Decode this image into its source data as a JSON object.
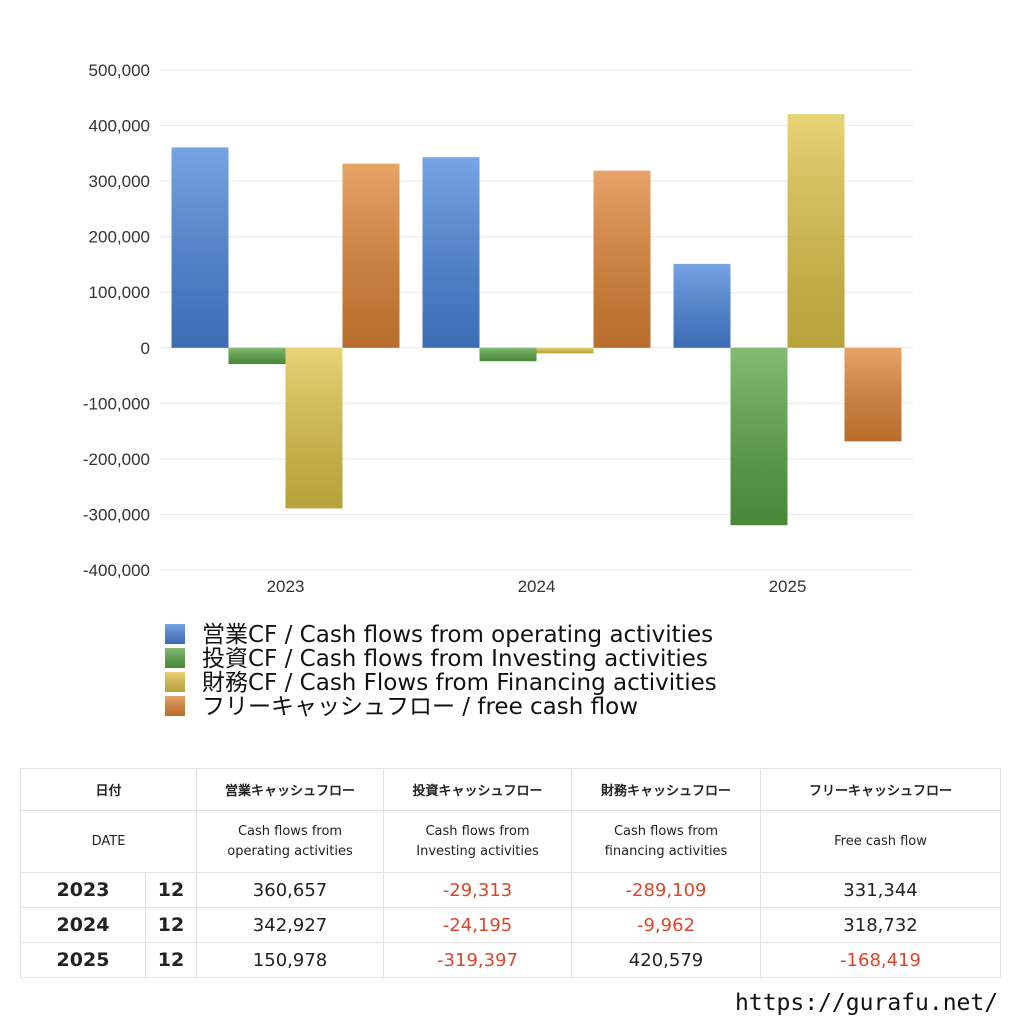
{
  "chart_data": {
    "type": "bar",
    "categories": [
      "2023",
      "2024",
      "2025"
    ],
    "series": [
      {
        "name": "営業CF / Cash flows from operating activities",
        "color": "#4a86dc",
        "values": [
          360657,
          342927,
          150978
        ]
      },
      {
        "name": "投資CF / Cash flows from Investing activities",
        "color": "#5aa545",
        "values": [
          -29313,
          -24195,
          -319397
        ]
      },
      {
        "name": "財務CF / Cash Flows from Financing activities",
        "color": "#e0c548",
        "values": [
          -289109,
          -9962,
          420579
        ]
      },
      {
        "name": "フリーキャッシュフロー / free cash flow",
        "color": "#e08535",
        "values": [
          331344,
          318732,
          -168419
        ]
      }
    ],
    "ylim": [
      -400000,
      500000
    ],
    "yticks": [
      {
        "value": -400000,
        "label": "-400,000"
      },
      {
        "value": -300000,
        "label": "-300,000"
      },
      {
        "value": -200000,
        "label": "-200,000"
      },
      {
        "value": -100000,
        "label": "-100,000"
      },
      0,
      {
        "value": 100000,
        "label": "100,000"
      },
      {
        "value": 200000,
        "label": "200,000"
      },
      {
        "value": 300000,
        "label": "300,000"
      },
      {
        "value": 400000,
        "label": "400,000"
      },
      {
        "value": 500000,
        "label": "500,000"
      }
    ],
    "grid": true
  },
  "table": {
    "header": {
      "date": "日付",
      "columns": [
        "営業キャッシュフロー",
        "投資キャッシュフロー",
        "財務キャッシュフロー",
        "フリーキャッシュフロー"
      ]
    },
    "subheader": {
      "date": "DATE",
      "columns": [
        "Cash flows from operating activities",
        "Cash flows from Investing activities",
        "Cash flows from financing activities",
        "Free cash flow"
      ]
    },
    "rows": [
      [
        "2023",
        "12",
        "360,657",
        "-29,313",
        "-289,109",
        "331,344"
      ],
      [
        "2024",
        "12",
        "342,927",
        "-24,195",
        "-9,962",
        "318,732"
      ],
      [
        "2025",
        "12",
        "150,978",
        "-319,397",
        "420,579",
        "-168,419"
      ]
    ]
  },
  "footer": "https://gurafu.net/"
}
